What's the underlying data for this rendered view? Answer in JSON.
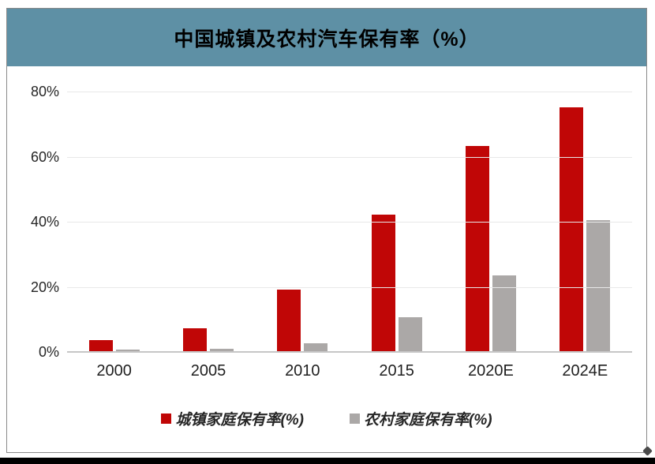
{
  "header": {
    "title": "中国城镇及农村汽车保有率（%）"
  },
  "chart_data": {
    "type": "bar",
    "title": "中国城镇及农村汽车保有率（%）",
    "categories": [
      "2000",
      "2005",
      "2010",
      "2015",
      "2020E",
      "2024E"
    ],
    "series": [
      {
        "name": "城镇家庭保有率(%)",
        "color": "#C00606",
        "values": [
          3.4,
          7.1,
          19.0,
          42.0,
          63.0,
          75.0
        ]
      },
      {
        "name": "农村家庭保有率(%)",
        "color": "#ABA8A7",
        "values": [
          0.5,
          0.7,
          2.4,
          10.5,
          23.3,
          40.3
        ]
      }
    ],
    "xlabel": "",
    "ylabel": "",
    "ylim": [
      0,
      80
    ],
    "y_tick_values": [
      0,
      20,
      40,
      60,
      80
    ],
    "y_tick_labels": [
      "0%",
      "20%",
      "40%",
      "60%",
      "80%"
    ],
    "grid": true,
    "legend_position": "bottom"
  },
  "colors": {
    "title_bar_background": "#5E90A5",
    "urban_series": "#C00606",
    "rural_series": "#ABA8A7",
    "gridline": "#e8e8e8",
    "baseline": "#c6c6c6",
    "frame_border": "#8a8a8a",
    "bottom_bar": "#000000"
  }
}
